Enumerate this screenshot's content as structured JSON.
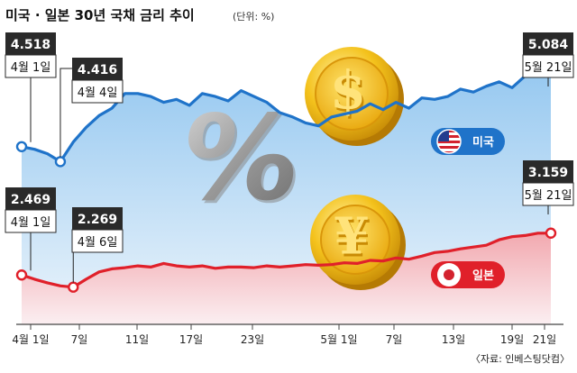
{
  "title": "미국 · 일본 30년 국채 금리 추이",
  "unit": "(단위: %)",
  "source": "〈자료: 인베스팅닷컴〉",
  "colors": {
    "us": "#1f73c9",
    "jp": "#e0202a"
  },
  "chart_data": {
    "type": "line",
    "x_ticks": [
      "4월 1일",
      "7일",
      "11일",
      "17일",
      "23일",
      "5월 1일",
      "7일",
      "13일",
      "19일",
      "21일"
    ],
    "series": [
      {
        "name": "미국",
        "values": [
          4.518,
          4.5,
          4.47,
          4.416,
          4.55,
          4.65,
          4.73,
          4.78,
          4.88,
          4.88,
          4.86,
          4.82,
          4.84,
          4.8,
          4.88,
          4.86,
          4.83,
          4.9,
          4.86,
          4.82,
          4.75,
          4.72,
          4.68,
          4.66,
          4.72,
          4.74,
          4.76,
          4.81,
          4.77,
          4.82,
          4.78,
          4.85,
          4.84,
          4.86,
          4.91,
          4.89,
          4.93,
          4.96,
          4.92,
          5.0,
          5.084,
          5.084
        ],
        "annotations": [
          {
            "value": "4.518",
            "date": "4월 1일"
          },
          {
            "value": "4.416",
            "date": "4월 4일"
          },
          {
            "value": "5.084",
            "date": "5월 21일"
          }
        ]
      },
      {
        "name": "일본",
        "values": [
          2.469,
          2.4,
          2.34,
          2.29,
          2.269,
          2.4,
          2.52,
          2.57,
          2.59,
          2.62,
          2.6,
          2.66,
          2.62,
          2.6,
          2.62,
          2.58,
          2.6,
          2.6,
          2.59,
          2.62,
          2.6,
          2.62,
          2.64,
          2.63,
          2.64,
          2.67,
          2.66,
          2.71,
          2.7,
          2.75,
          2.73,
          2.78,
          2.84,
          2.86,
          2.9,
          2.93,
          2.96,
          3.05,
          3.1,
          3.12,
          3.159,
          3.159
        ],
        "annotations": [
          {
            "value": "2.469",
            "date": "4월 1일"
          },
          {
            "value": "2.269",
            "date": "4월 6일"
          },
          {
            "value": "3.159",
            "date": "5월 21일"
          }
        ]
      }
    ]
  }
}
